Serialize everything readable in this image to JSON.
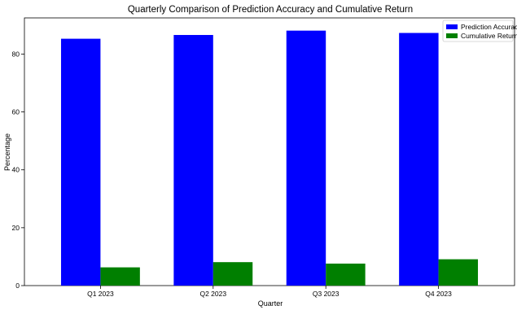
{
  "chart_data": {
    "type": "bar",
    "title": "Quarterly Comparison of Prediction Accuracy and Cumulative Return",
    "xlabel": "Quarter",
    "ylabel": "Percentage",
    "categories": [
      "Q1 2023",
      "Q2 2023",
      "Q3 2023",
      "Q4 2023"
    ],
    "series": [
      {
        "name": "Prediction Accuracy",
        "values": [
          85.3,
          86.6,
          88.1,
          87.3
        ],
        "color": "#0000ff"
      },
      {
        "name": "Cumulative Return",
        "values": [
          6.3,
          8.1,
          7.6,
          9.1
        ],
        "color": "#007f00"
      }
    ],
    "ylim": [
      0,
      92.5
    ],
    "yticks": [
      0,
      20,
      40,
      60,
      80
    ],
    "grid": false,
    "legend_position": "top-right"
  }
}
